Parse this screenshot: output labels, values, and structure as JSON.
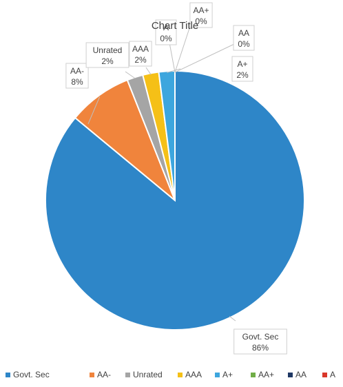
{
  "chart_data": {
    "type": "pie",
    "title": "Chart Title",
    "legend_position": "bottom",
    "slices": [
      {
        "name": "Govt. Sec",
        "value": 86,
        "label": "86%",
        "color": "#2E86C8"
      },
      {
        "name": "AA-",
        "value": 8,
        "label": "8%",
        "color": "#F0843C"
      },
      {
        "name": "Unrated",
        "value": 2,
        "label": "2%",
        "color": "#A5A5A5"
      },
      {
        "name": "AAA",
        "value": 2,
        "label": "2%",
        "color": "#F5C017"
      },
      {
        "name": "A+",
        "value": 2,
        "label": "2%",
        "color": "#3DA6DE"
      },
      {
        "name": "AA+",
        "value": 0,
        "label": "0%",
        "color": "#70AD47"
      },
      {
        "name": "AA",
        "value": 0,
        "label": "0%",
        "color": "#1F3864"
      },
      {
        "name": "A",
        "value": 0,
        "label": "0%",
        "color": "#D9372A"
      }
    ],
    "data_labels": [
      {
        "slice": 0,
        "name_text": "Govt. Sec",
        "value_text": "86%"
      },
      {
        "slice": 1,
        "name_text": "AA-",
        "value_text": "8%"
      },
      {
        "slice": 2,
        "name_text": "Unrated",
        "value_text": "2%"
      },
      {
        "slice": 3,
        "name_text": "AAA",
        "value_text": "2%"
      },
      {
        "slice": 4,
        "name_text": "A+",
        "value_text": "2%"
      },
      {
        "slice": 5,
        "name_text": "AA+",
        "value_text": "0%"
      },
      {
        "slice": 6,
        "name_text": "AA",
        "value_text": "0%"
      },
      {
        "slice": 7,
        "name_text": "A",
        "value_text": "0%"
      }
    ],
    "legend_entries": [
      "Govt. Sec",
      "AA-",
      "Unrated",
      "AAA",
      "A+",
      "AA+",
      "AA",
      "A"
    ]
  }
}
